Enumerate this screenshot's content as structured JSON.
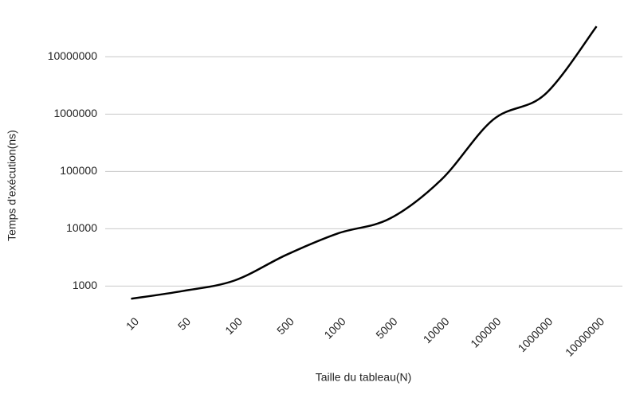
{
  "chart_data": {
    "type": "line",
    "x_label": "Taille du tableau(N)",
    "y_label": "Temps d'exécution(ns)",
    "categories": [
      "10",
      "50",
      "100",
      "500",
      "1000",
      "5000",
      "10000",
      "100000",
      "1000000",
      "10000000"
    ],
    "series": [
      {
        "color": "#000000",
        "values": [
          600,
          820,
          1250,
          3500,
          8300,
          15000,
          72000,
          800000,
          2200000,
          34000000
        ]
      }
    ],
    "log_scale": true,
    "ylim": [
      400,
      40000000
    ],
    "yticks": [
      1000,
      10000,
      100000,
      1000000,
      10000000
    ],
    "grid": true
  }
}
